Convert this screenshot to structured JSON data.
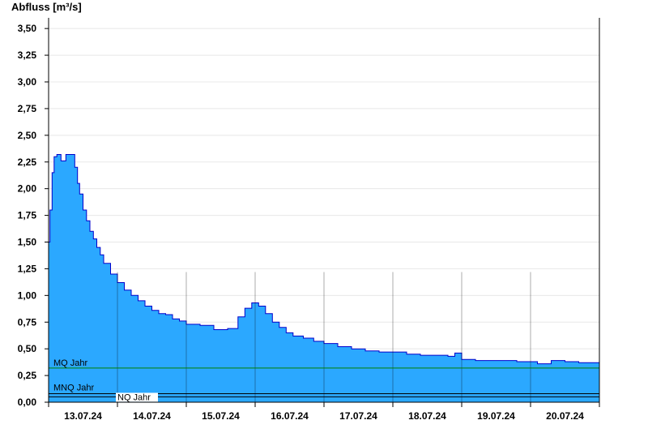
{
  "chart_data": {
    "type": "area",
    "ylabel": "Abfluss [m³/s]",
    "ylim": [
      0,
      3.6
    ],
    "yticks": [
      0,
      0.25,
      0.5,
      0.75,
      1.0,
      1.25,
      1.5,
      1.75,
      2.0,
      2.25,
      2.5,
      2.75,
      3.0,
      3.25,
      3.5
    ],
    "ytick_labels": [
      "0,00",
      "0,25",
      "0,50",
      "0,75",
      "1,00",
      "1,25",
      "1,50",
      "1,75",
      "2,00",
      "2,25",
      "2,50",
      "2,75",
      "3,00",
      "3,25",
      "3,50"
    ],
    "xlim": [
      0,
      8
    ],
    "xticks": [
      0.5,
      1.5,
      2.5,
      3.5,
      4.5,
      5.5,
      6.5,
      7.5
    ],
    "xtick_labels": [
      "13.07.24",
      "14.07.24",
      "15.07.24",
      "16.07.24",
      "17.07.24",
      "18.07.24",
      "19.07.24",
      "20.07.24"
    ],
    "day_lines": [
      1,
      2,
      3,
      4,
      5,
      6,
      7
    ],
    "grid": true,
    "colors": {
      "area": "#2ba8ff",
      "line": "#0000cc",
      "mq": "#008000",
      "mnq": "#000000",
      "nq": "#000000",
      "grid": "#e8e8e8"
    },
    "series": [
      {
        "name": "",
        "x": [
          0,
          0.02,
          0.05,
          0.08,
          0.12,
          0.18,
          0.22,
          0.25,
          0.3,
          0.38,
          0.42,
          0.45,
          0.5,
          0.55,
          0.6,
          0.65,
          0.7,
          0.75,
          0.8,
          0.9,
          1.0,
          1.1,
          1.2,
          1.3,
          1.4,
          1.5,
          1.6,
          1.7,
          1.8,
          1.9,
          2.0,
          2.2,
          2.4,
          2.6,
          2.75,
          2.85,
          2.95,
          3.05,
          3.15,
          3.25,
          3.35,
          3.45,
          3.55,
          3.7,
          3.85,
          4.0,
          4.2,
          4.4,
          4.6,
          4.8,
          5.0,
          5.2,
          5.4,
          5.6,
          5.8,
          5.9,
          6.0,
          6.2,
          6.4,
          6.6,
          6.8,
          7.0,
          7.1,
          7.2,
          7.3,
          7.4,
          7.5,
          7.7,
          8.0
        ],
        "values": [
          1.5,
          1.8,
          2.15,
          2.3,
          2.32,
          2.26,
          2.26,
          2.32,
          2.32,
          2.2,
          2.05,
          1.95,
          1.8,
          1.7,
          1.6,
          1.53,
          1.45,
          1.38,
          1.3,
          1.2,
          1.12,
          1.05,
          1.0,
          0.95,
          0.9,
          0.86,
          0.83,
          0.82,
          0.78,
          0.76,
          0.73,
          0.72,
          0.68,
          0.69,
          0.8,
          0.88,
          0.93,
          0.9,
          0.83,
          0.75,
          0.7,
          0.65,
          0.62,
          0.6,
          0.57,
          0.55,
          0.52,
          0.5,
          0.48,
          0.47,
          0.47,
          0.45,
          0.44,
          0.44,
          0.43,
          0.46,
          0.4,
          0.39,
          0.39,
          0.39,
          0.38,
          0.38,
          0.36,
          0.36,
          0.39,
          0.39,
          0.38,
          0.37,
          0.36
        ]
      }
    ],
    "reference_lines": [
      {
        "label": "MQ Jahr",
        "value": 0.32
      },
      {
        "label": "MNQ Jahr",
        "value": 0.08
      },
      {
        "label": "NQ Jahr",
        "value": 0.05
      }
    ]
  }
}
